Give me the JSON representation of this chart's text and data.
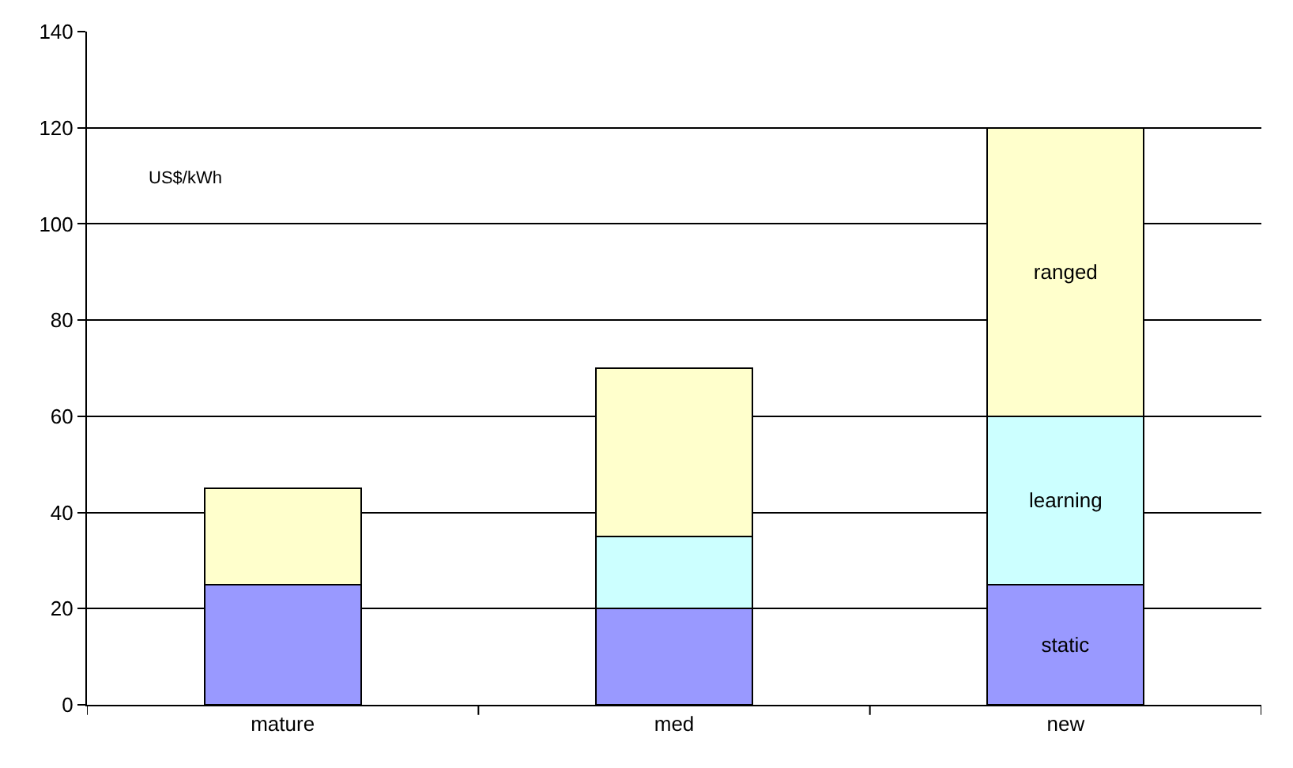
{
  "chart_data": {
    "type": "bar",
    "stacked": true,
    "categories": [
      "mature",
      "med",
      "new"
    ],
    "series": [
      {
        "name": "static",
        "color": "#9999ff",
        "values": [
          25,
          20,
          25
        ]
      },
      {
        "name": "learning",
        "color": "#ccffff",
        "values": [
          null,
          15,
          35
        ]
      },
      {
        "name": "ranged",
        "color": "#ffffcc",
        "values": [
          20,
          35,
          60
        ]
      }
    ],
    "ylim": [
      0,
      140
    ],
    "yticks": [
      0,
      20,
      40,
      60,
      80,
      100,
      120,
      140
    ],
    "grid": "y",
    "legend": false,
    "annotations": [
      "US$/kWh"
    ]
  }
}
